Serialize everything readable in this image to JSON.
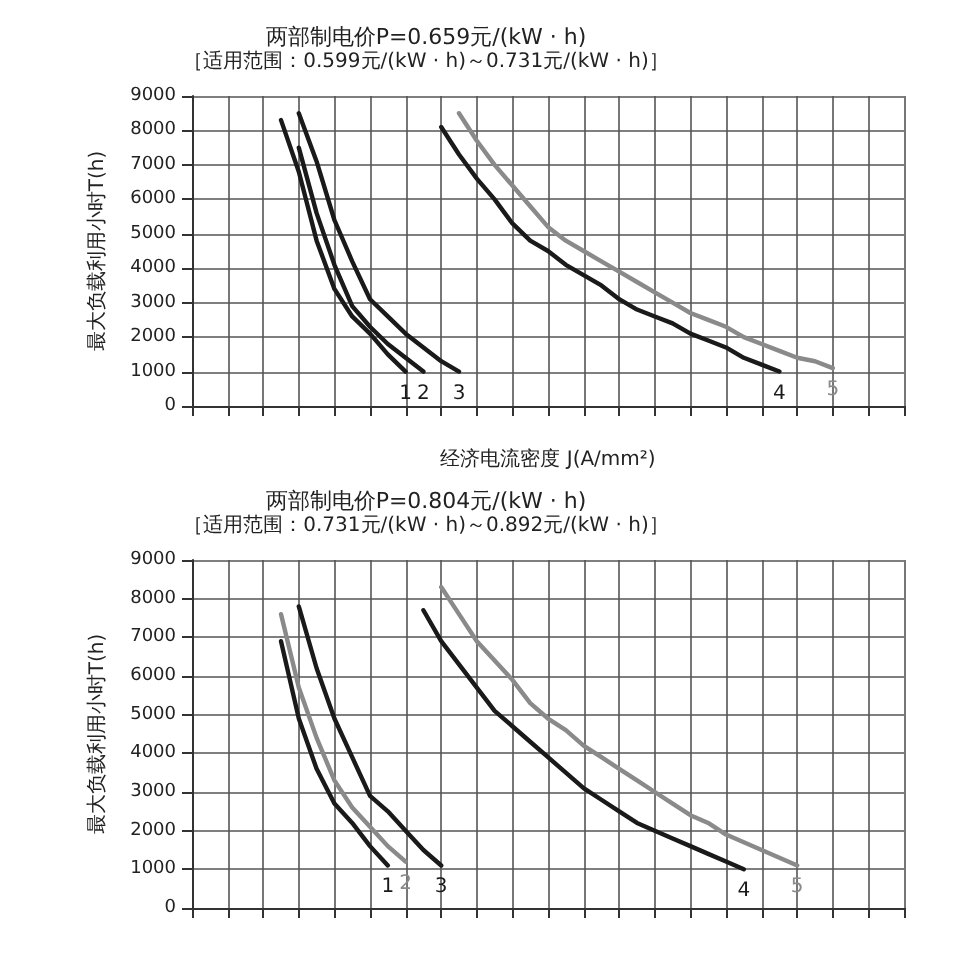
{
  "chart_data": [
    {
      "type": "line",
      "title": "两部制电价P=0.659元/(kW · h)",
      "subtitle": "［适用范围：0.599元/(kW · h)～0.731元/(kW · h)］",
      "xlabel": "经济电流密度 J(A/mm²)",
      "ylabel": "最大负载利用小时T(h)",
      "categories": [
        null,
        null,
        null,
        null,
        null,
        null,
        null,
        null,
        null,
        null,
        null,
        null,
        null,
        null,
        null,
        null,
        null,
        null,
        null,
        null,
        null,
        null,
        null,
        null,
        null,
        null,
        null,
        null,
        null,
        null,
        null,
        null,
        null,
        null,
        null,
        null,
        null,
        null,
        null,
        null,
        null
      ],
      "ylim": [
        0,
        9000
      ],
      "yticks": [
        0,
        1000,
        2000,
        3000,
        4000,
        5000,
        6000,
        7000,
        8000,
        9000
      ],
      "grid": true,
      "tick_labels": "y",
      "marker": "none",
      "line_style": "solid",
      "series": [
        {
          "name": "1",
          "color": "#1a1a1a",
          "values": [
            null,
            null,
            null,
            null,
            null,
            8300,
            6800,
            4800,
            3400,
            2600,
            2100,
            1500,
            1000,
            null,
            null,
            null,
            null,
            null,
            null,
            null,
            null,
            null,
            null,
            null,
            null,
            null,
            null,
            null,
            null,
            null,
            null,
            null,
            null,
            null,
            null,
            null,
            null,
            null,
            null,
            null,
            null
          ]
        },
        {
          "name": "2",
          "color": "#1a1a1a",
          "values": [
            null,
            null,
            null,
            null,
            null,
            null,
            7500,
            5600,
            4100,
            2900,
            2300,
            1800,
            1400,
            1000,
            null,
            null,
            null,
            null,
            null,
            null,
            null,
            null,
            null,
            null,
            null,
            null,
            null,
            null,
            null,
            null,
            null,
            null,
            null,
            null,
            null,
            null,
            null,
            null,
            null,
            null,
            null
          ]
        },
        {
          "name": "3",
          "color": "#1a1a1a",
          "values": [
            null,
            null,
            null,
            null,
            null,
            null,
            8500,
            7100,
            5400,
            4200,
            3100,
            2600,
            2100,
            1700,
            1300,
            1000,
            null,
            null,
            null,
            null,
            null,
            null,
            null,
            null,
            null,
            null,
            null,
            null,
            null,
            null,
            null,
            null,
            null,
            null,
            null,
            null,
            null,
            null,
            null,
            null,
            null
          ]
        },
        {
          "name": "4",
          "color": "#1a1a1a",
          "values": [
            null,
            null,
            null,
            null,
            null,
            null,
            null,
            null,
            null,
            null,
            null,
            null,
            null,
            null,
            8100,
            7300,
            6600,
            6000,
            5300,
            4800,
            4500,
            4100,
            3800,
            3500,
            3100,
            2800,
            2600,
            2400,
            2100,
            1900,
            1700,
            1400,
            1200,
            1000,
            null,
            null,
            null,
            null,
            null,
            null,
            null
          ]
        },
        {
          "name": "5",
          "color": "#8a8a8a",
          "values": [
            null,
            null,
            null,
            null,
            null,
            null,
            null,
            null,
            null,
            null,
            null,
            null,
            null,
            null,
            null,
            8500,
            7700,
            7000,
            6400,
            5800,
            5200,
            4800,
            4500,
            4200,
            3900,
            3600,
            3300,
            3000,
            2700,
            2500,
            2300,
            2000,
            1800,
            1600,
            1400,
            1300,
            1100,
            null,
            null,
            null,
            null
          ]
        }
      ]
    },
    {
      "type": "line",
      "title": "两部制电价P=0.804元/(kW · h)",
      "subtitle": "［适用范围：0.731元/(kW · h)～0.892元/(kW · h)］",
      "ylabel": "最大负载利用小时T(h)",
      "categories": [
        null,
        null,
        null,
        null,
        null,
        null,
        null,
        null,
        null,
        null,
        null,
        null,
        null,
        null,
        null,
        null,
        null,
        null,
        null,
        null,
        null,
        null,
        null,
        null,
        null,
        null,
        null,
        null,
        null,
        null,
        null,
        null,
        null,
        null,
        null,
        null,
        null,
        null,
        null,
        null,
        null
      ],
      "ylim": [
        0,
        9000
      ],
      "yticks": [
        0,
        1000,
        2000,
        3000,
        4000,
        5000,
        6000,
        7000,
        8000,
        9000
      ],
      "grid": true,
      "tick_labels": "y",
      "marker": "none",
      "line_style": "solid",
      "series": [
        {
          "name": "1",
          "color": "#1a1a1a",
          "values": [
            null,
            null,
            null,
            null,
            null,
            6900,
            4900,
            3600,
            2700,
            2200,
            1600,
            1100,
            null,
            null,
            null,
            null,
            null,
            null,
            null,
            null,
            null,
            null,
            null,
            null,
            null,
            null,
            null,
            null,
            null,
            null,
            null,
            null,
            null,
            null,
            null,
            null,
            null,
            null,
            null,
            null,
            null
          ]
        },
        {
          "name": "2",
          "color": "#8a8a8a",
          "values": [
            null,
            null,
            null,
            null,
            null,
            7600,
            5700,
            4400,
            3300,
            2600,
            2100,
            1600,
            1200,
            null,
            null,
            null,
            null,
            null,
            null,
            null,
            null,
            null,
            null,
            null,
            null,
            null,
            null,
            null,
            null,
            null,
            null,
            null,
            null,
            null,
            null,
            null,
            null,
            null,
            null,
            null,
            null
          ]
        },
        {
          "name": "3",
          "color": "#1a1a1a",
          "values": [
            null,
            null,
            null,
            null,
            null,
            null,
            7800,
            6200,
            4900,
            3900,
            2900,
            2500,
            2000,
            1500,
            1100,
            null,
            null,
            null,
            null,
            null,
            null,
            null,
            null,
            null,
            null,
            null,
            null,
            null,
            null,
            null,
            null,
            null,
            null,
            null,
            null,
            null,
            null,
            null,
            null,
            null,
            null
          ]
        },
        {
          "name": "4",
          "color": "#1a1a1a",
          "values": [
            null,
            null,
            null,
            null,
            null,
            null,
            null,
            null,
            null,
            null,
            null,
            null,
            null,
            7700,
            6900,
            6300,
            5700,
            5100,
            4700,
            4300,
            3900,
            3500,
            3100,
            2800,
            2500,
            2200,
            2000,
            1800,
            1600,
            1400,
            1200,
            1000,
            null,
            null,
            null,
            null,
            null,
            null,
            null,
            null,
            null
          ]
        },
        {
          "name": "5",
          "color": "#8a8a8a",
          "values": [
            null,
            null,
            null,
            null,
            null,
            null,
            null,
            null,
            null,
            null,
            null,
            null,
            null,
            null,
            8300,
            7600,
            6900,
            6400,
            5900,
            5300,
            4900,
            4600,
            4200,
            3900,
            3600,
            3300,
            3000,
            2700,
            2400,
            2200,
            1900,
            1700,
            1500,
            1300,
            1100,
            null,
            null,
            null,
            null,
            null,
            null
          ]
        }
      ]
    }
  ]
}
